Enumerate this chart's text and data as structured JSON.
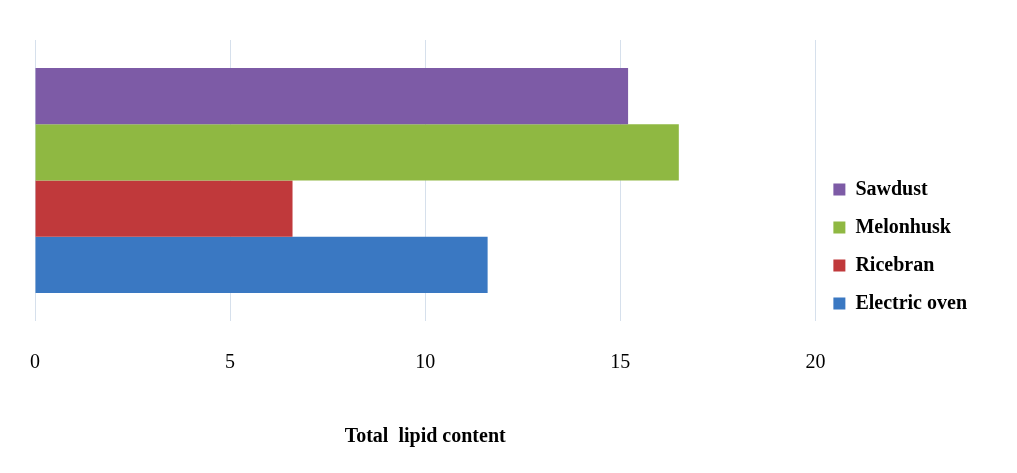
{
  "chart_data": {
    "type": "bar",
    "orientation": "horizontal",
    "xlabel": "Total  lipid content",
    "categories": [
      null
    ],
    "series": [
      {
        "name": "Sawdust",
        "color": "#7d5ba6",
        "values": [
          15.2
        ]
      },
      {
        "name": "Melonhusk",
        "color": "#8fb842",
        "values": [
          16.5
        ]
      },
      {
        "name": "Ricebran",
        "color": "#c0393b",
        "values": [
          6.6
        ]
      },
      {
        "name": "Electric oven",
        "color": "#3a78c2",
        "values": [
          11.6
        ]
      }
    ],
    "xlim": [
      0,
      20
    ],
    "xticks": [
      0,
      5,
      10,
      15,
      20
    ],
    "grid": "x",
    "legend": "right",
    "tick_labels": "x"
  }
}
